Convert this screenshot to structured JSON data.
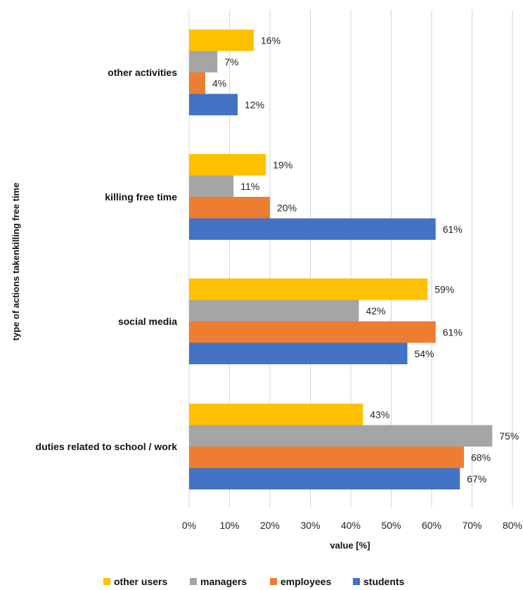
{
  "chart_data": {
    "type": "bar",
    "orientation": "horizontal",
    "categories": [
      "other activities",
      "killing free time",
      "social media",
      "duties related to school / work"
    ],
    "series": [
      {
        "name": "other users",
        "color": "#FFC000",
        "values": [
          16,
          19,
          59,
          43
        ]
      },
      {
        "name": "managers",
        "color": "#A5A5A5",
        "values": [
          7,
          11,
          42,
          75
        ]
      },
      {
        "name": "employees",
        "color": "#ED7D31",
        "values": [
          4,
          20,
          61,
          68
        ]
      },
      {
        "name": "students",
        "color": "#4472C4",
        "values": [
          12,
          61,
          54,
          67
        ]
      }
    ],
    "xticks": [
      "0%",
      "10%",
      "20%",
      "30%",
      "40%",
      "50%",
      "60%",
      "70%",
      "80%"
    ],
    "xlim": [
      0,
      80
    ],
    "xlabel": "value [%]",
    "ylabel": "type of actions takenkilling free time",
    "value_suffix": "%",
    "grid": true,
    "legend_position": "bottom"
  }
}
